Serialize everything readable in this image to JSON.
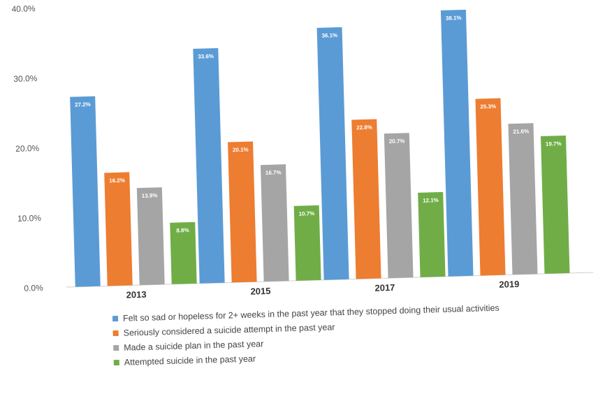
{
  "chart_data": {
    "type": "bar",
    "categories": [
      "2013",
      "2015",
      "2017",
      "2019"
    ],
    "series": [
      {
        "name": "Felt so sad or hopeless for 2+ weeks in the past year that they stopped doing their usual activities",
        "color": "#5B9BD5",
        "values": [
          27.2,
          33.6,
          36.1,
          38.1
        ],
        "labels": [
          "27.2%",
          "33.6%",
          "36.1%",
          "38.1%"
        ]
      },
      {
        "name": "Seriously considered a suicide attempt in the past year",
        "color": "#ED7D31",
        "values": [
          16.2,
          20.1,
          22.8,
          25.3
        ],
        "labels": [
          "16.2%",
          "20.1%",
          "22.8%",
          "25.3%"
        ]
      },
      {
        "name": "Made a suicide plan in the past year",
        "color": "#A5A5A5",
        "values": [
          13.9,
          16.7,
          20.7,
          21.6
        ],
        "labels": [
          "13.9%",
          "16.7%",
          "20.7%",
          "21.6%"
        ]
      },
      {
        "name": "Attempted suicide in the past year",
        "color": "#70AD47",
        "values": [
          8.8,
          10.7,
          12.1,
          19.7
        ],
        "labels": [
          "8.8%",
          "10.7%",
          "12.1%",
          "19.7%"
        ]
      }
    ],
    "y_ticks": [
      "0.0%",
      "10.0%",
      "20.0%",
      "30.0%",
      "40.0%"
    ],
    "ylim": [
      0,
      40
    ],
    "grid": false,
    "legend_position": "bottom"
  }
}
